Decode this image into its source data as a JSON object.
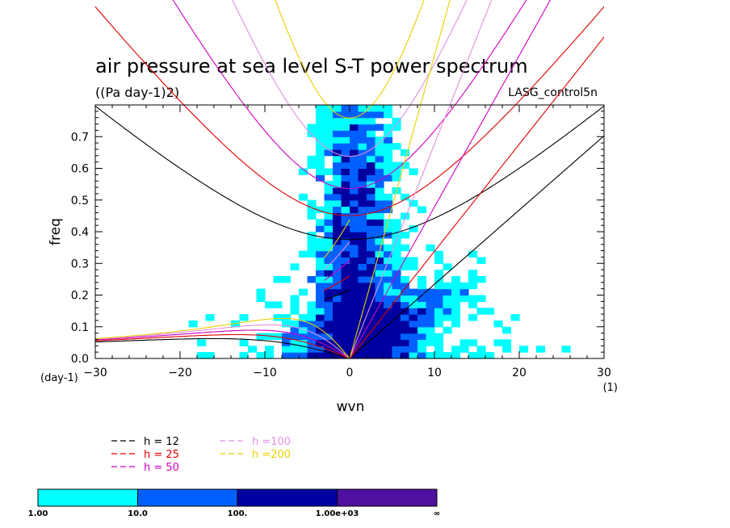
{
  "chart_data": {
    "type": "heatmap",
    "title": "air pressure at sea level S-T power spectrum",
    "units": "((Pa day-1)2)",
    "model": "LASG_control5n",
    "xlabel": "wvn",
    "ylabel": "freq",
    "x_unit": "(1)",
    "y_unit": "(day-1)",
    "xlim": [
      -30,
      30
    ],
    "ylim": [
      0,
      0.8
    ],
    "x_ticks": [
      -30,
      -20,
      -10,
      0,
      10,
      20,
      30
    ],
    "y_ticks": [
      0.0,
      0.1,
      0.2,
      0.3,
      0.4,
      0.5,
      0.6,
      0.7
    ],
    "x_tick_labels": [
      "−30",
      "−20",
      "−10",
      "0",
      "10",
      "20",
      "30"
    ],
    "y_tick_labels": [
      "0.0",
      "0.1",
      "0.2",
      "0.3",
      "0.4",
      "0.5",
      "0.6",
      "0.7"
    ],
    "dispersion_curves": [
      {
        "label": "h = 12",
        "h": 12,
        "color": "#000000"
      },
      {
        "label": "h = 25",
        "h": 25,
        "color": "#e00000"
      },
      {
        "label": "h = 50",
        "h": 50,
        "color": "#d000c0"
      },
      {
        "label": "h =100",
        "h": 100,
        "color": "#e090e0"
      },
      {
        "label": "h =200",
        "h": 200,
        "color": "#e8d000"
      }
    ],
    "colorbar": {
      "levels": [
        "1.00",
        "10.0",
        "100.",
        "1.00e+03",
        "∞"
      ],
      "colors": [
        "#00ffff",
        "#0060ff",
        "#0000a0",
        "#5010a0"
      ]
    }
  }
}
